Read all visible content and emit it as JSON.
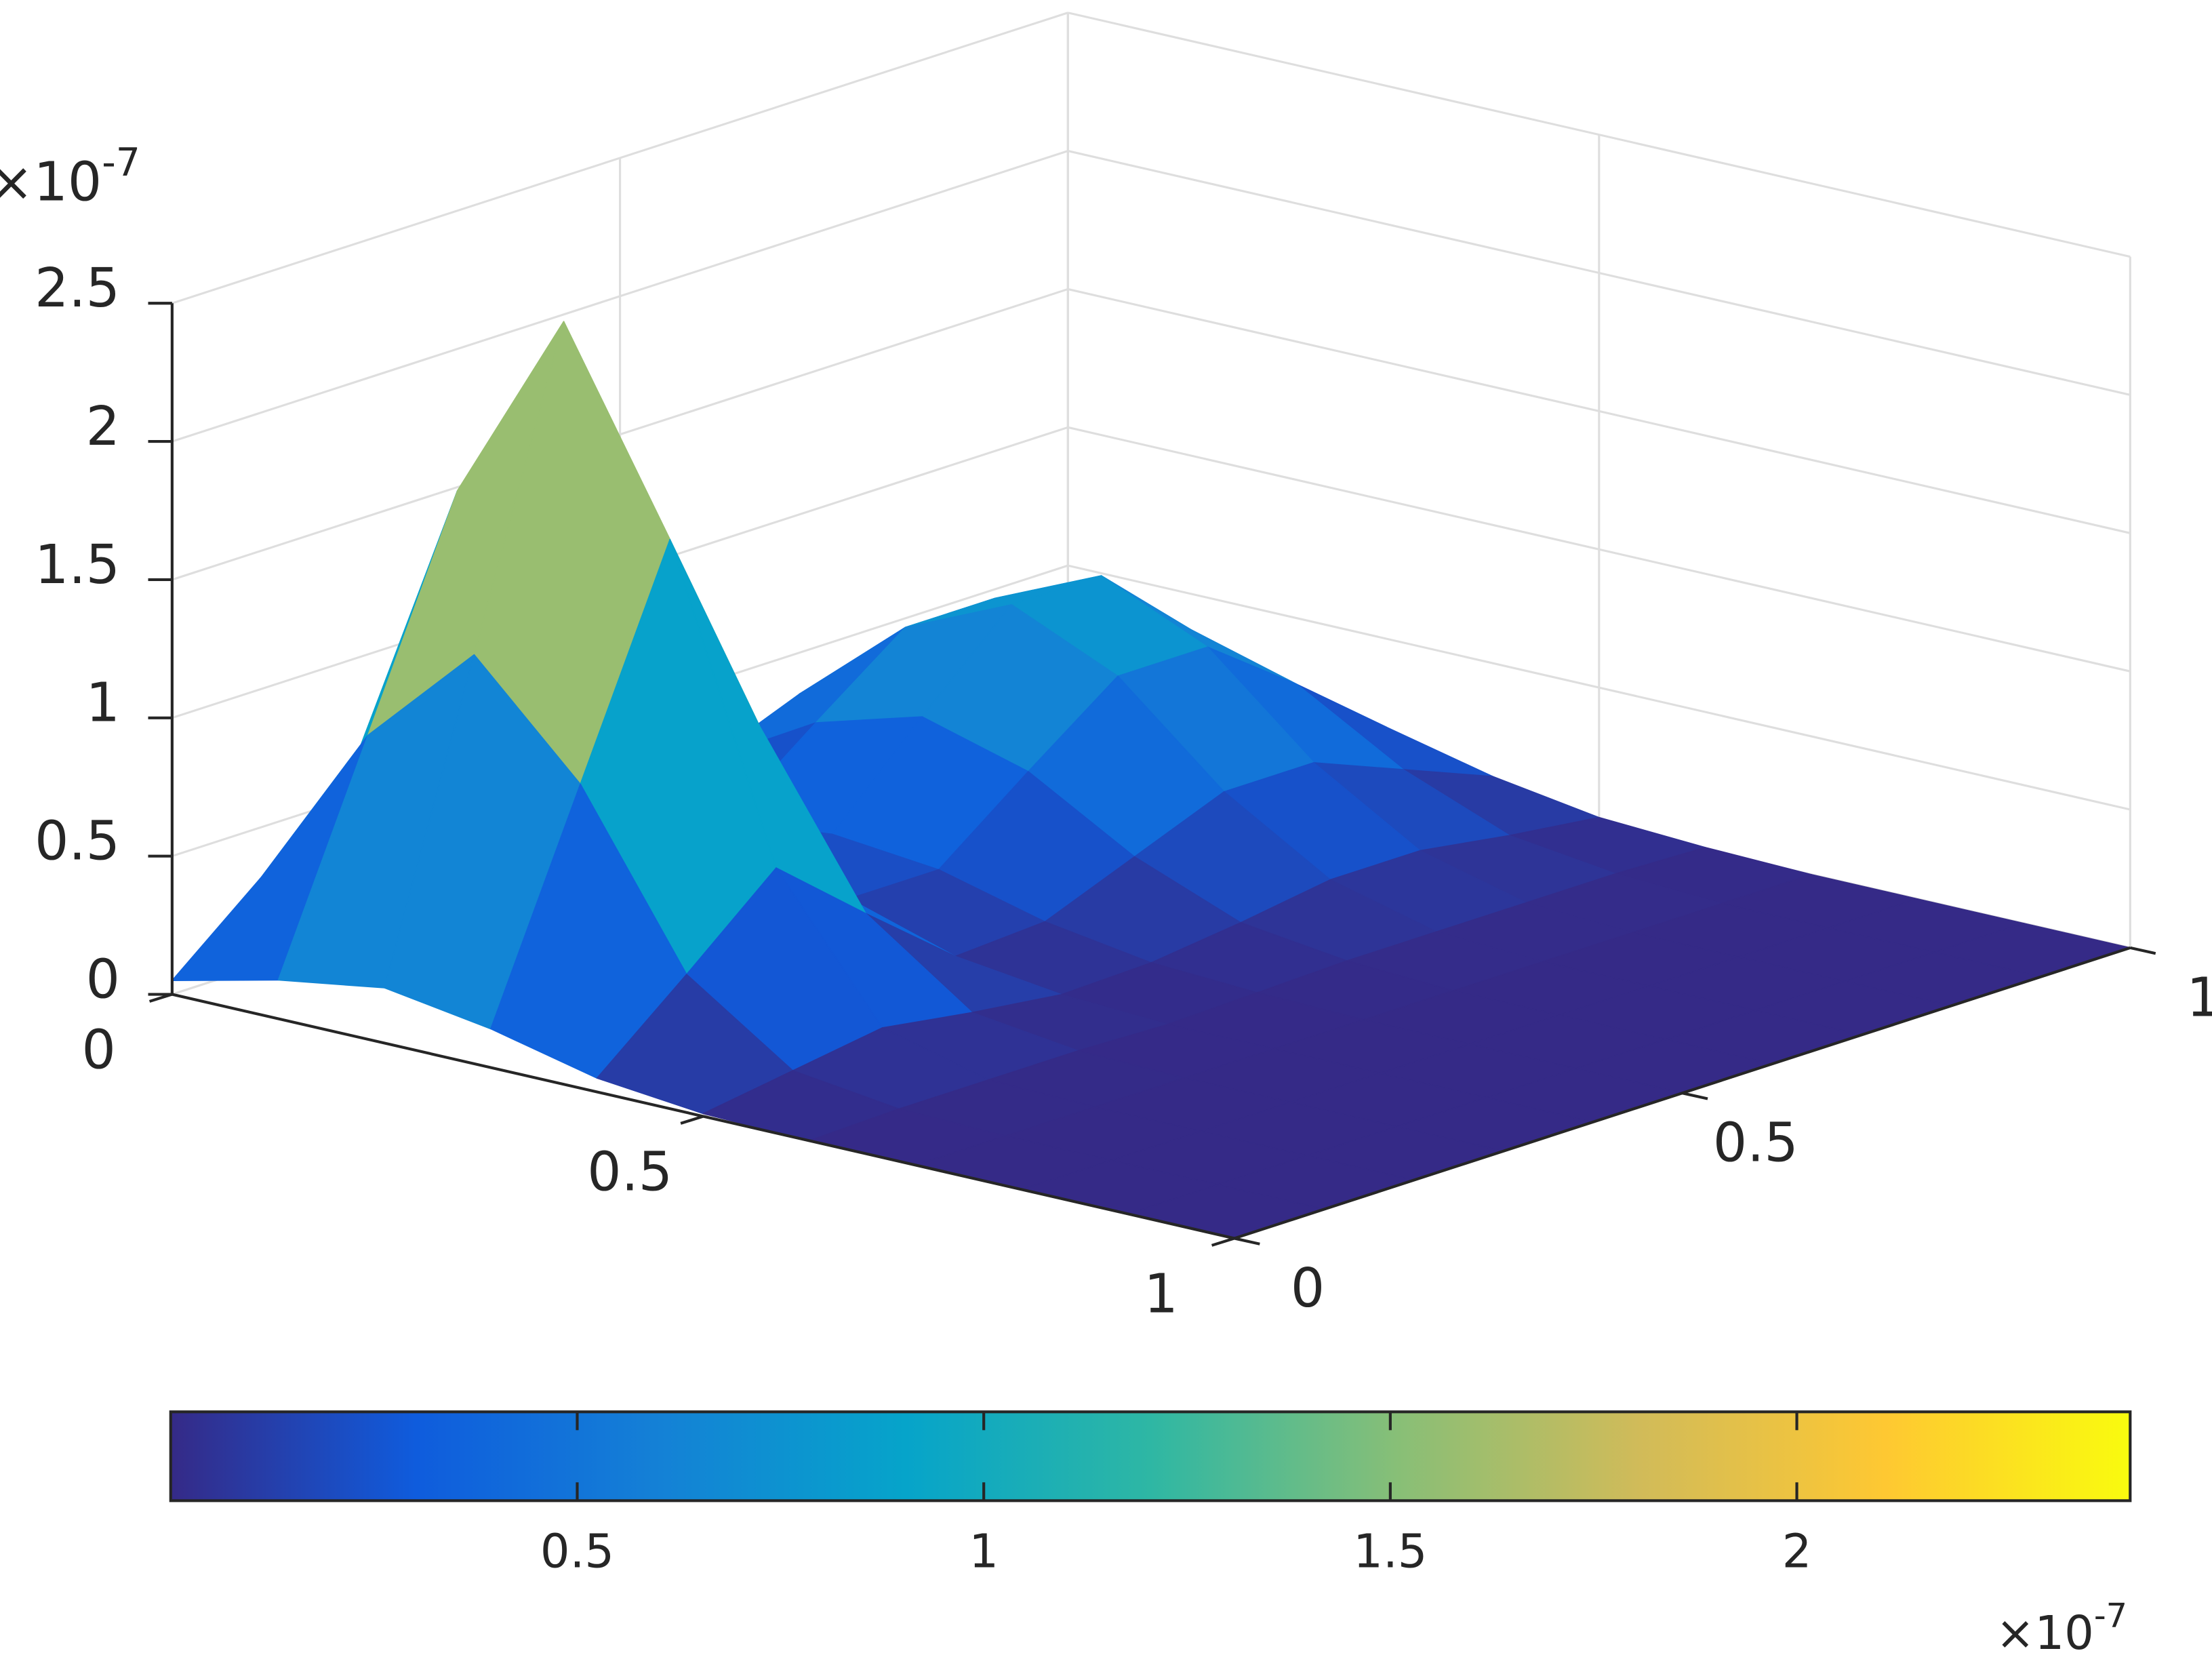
{
  "chart_data": {
    "type": "surface",
    "x": [
      0,
      0.1,
      0.2,
      0.3,
      0.4,
      0.5,
      0.6,
      0.7,
      0.8,
      0.9,
      1
    ],
    "y": [
      0,
      0.1,
      0.2,
      0.3,
      0.4,
      0.5,
      0.6,
      0.7,
      0.8,
      0.9,
      1
    ],
    "z": [
      [
        0.05,
        0.14,
        0.2,
        0.14,
        0.05,
        0.01,
        0,
        0,
        0,
        0,
        0
      ],
      [
        0.32,
        0.92,
        1.3,
        0.92,
        0.32,
        0.06,
        0.01,
        0,
        0,
        0,
        0
      ],
      [
        0.6,
        1.7,
        2.4,
        1.7,
        0.6,
        0.11,
        0.01,
        0,
        0,
        0,
        0
      ],
      [
        0.33,
        0.92,
        1.31,
        0.92,
        0.33,
        0.06,
        0.01,
        0,
        0,
        0,
        0
      ],
      [
        0.07,
        0.19,
        0.26,
        0.19,
        0.07,
        0.02,
        0,
        0,
        0,
        0,
        0
      ],
      [
        0.09,
        0.19,
        0.23,
        0.19,
        0.09,
        0.03,
        0.01,
        0,
        0,
        0,
        0
      ],
      [
        0.22,
        0.44,
        0.55,
        0.44,
        0.22,
        0.07,
        0.02,
        0,
        0,
        0,
        0
      ],
      [
        0.35,
        0.68,
        0.85,
        0.68,
        0.35,
        0.12,
        0.02,
        0,
        0,
        0,
        0
      ],
      [
        0.35,
        0.68,
        0.85,
        0.68,
        0.35,
        0.12,
        0.02,
        0,
        0,
        0,
        0
      ],
      [
        0.22,
        0.44,
        0.55,
        0.44,
        0.22,
        0.07,
        0.02,
        0,
        0,
        0,
        0
      ],
      [
        0.09,
        0.18,
        0.22,
        0.18,
        0.09,
        0.03,
        0.01,
        0,
        0,
        0,
        0
      ]
    ],
    "xlim": [
      0,
      1
    ],
    "ylim": [
      0,
      1
    ],
    "zlim": [
      0,
      2.5
    ],
    "xticks": [
      0,
      0.5,
      1
    ],
    "yticks": [
      0,
      0.5,
      1
    ],
    "zticks": [
      0,
      0.5,
      1,
      1.5,
      2,
      2.5
    ],
    "z_multiplier": {
      "base": "×10",
      "exponent": "-7"
    },
    "grid": true,
    "colormap": [
      "#352a87",
      "#0f5cdd",
      "#1481d6",
      "#06a4ca",
      "#2eb7a4",
      "#87bf77",
      "#d1bb59",
      "#fec832",
      "#f9fb0e"
    ],
    "colorbar": {
      "clim": [
        0,
        2.41
      ],
      "ticks": [
        0.5,
        1,
        1.5,
        2
      ],
      "multiplier": {
        "base": "×10",
        "exponent": "-7"
      }
    }
  }
}
